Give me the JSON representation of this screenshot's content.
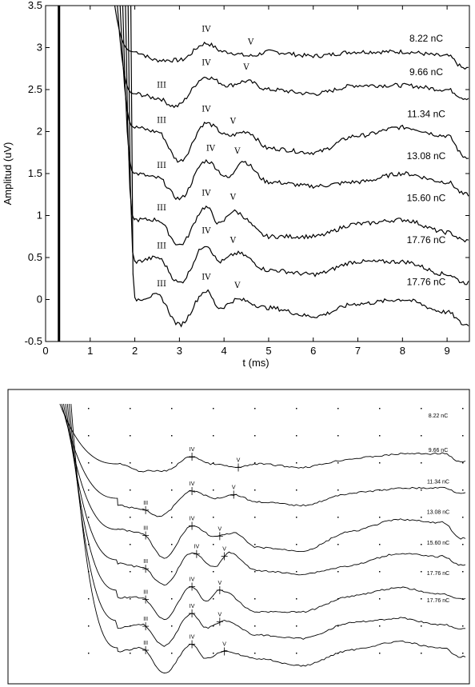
{
  "chart_data": [
    {
      "type": "line",
      "xlabel": "t  (ms)",
      "ylabel": "Amplitud (uV)",
      "xlim": [
        0,
        9.5
      ],
      "ylim": [
        -0.5,
        3.5
      ],
      "xticks": [
        "0",
        "1",
        "2",
        "3",
        "4",
        "5",
        "6",
        "7",
        "8",
        "9"
      ],
      "yticks": [
        "-0.5",
        "0",
        "0.5",
        "1",
        "1.5",
        "2",
        "2.5",
        "3",
        "3.5"
      ],
      "grid": false,
      "stimulus_marker_t": 0.3,
      "series": [
        {
          "name": "8.22 nC",
          "offset": 2.95,
          "has_III": false,
          "x": [
            2.0,
            2.5,
            3.0,
            3.6,
            4.0,
            4.6,
            5.0,
            6.0,
            7.0,
            8.0,
            9.0,
            9.4
          ],
          "y": [
            0.0,
            -0.1,
            -0.1,
            0.1,
            0.0,
            -0.05,
            0.0,
            -0.05,
            0.0,
            0.0,
            -0.05,
            -0.2
          ],
          "peaks": [
            {
              "label": "IV",
              "t": 3.6
            },
            {
              "label": "V",
              "t": 4.6
            }
          ]
        },
        {
          "name": "9.66 nC",
          "offset": 2.55,
          "has_III": true,
          "x": [
            2.0,
            2.5,
            2.9,
            3.6,
            4.1,
            4.5,
            5.0,
            6.0,
            7.0,
            8.0,
            9.0,
            9.4
          ],
          "y": [
            -0.1,
            -0.15,
            -0.25,
            0.1,
            0.0,
            0.05,
            -0.05,
            -0.1,
            0.0,
            0.0,
            -0.05,
            -0.15
          ],
          "peaks": [
            {
              "label": "III",
              "t": 2.6
            },
            {
              "label": "IV",
              "t": 3.6
            },
            {
              "label": "V",
              "t": 4.5
            }
          ]
        },
        {
          "name": "11.34 nC",
          "offset": 2.05,
          "has_III": true,
          "x": [
            2.0,
            2.5,
            3.0,
            3.6,
            4.1,
            4.5,
            5.0,
            6.0,
            7.0,
            8.0,
            9.0,
            9.4
          ],
          "y": [
            0.0,
            -0.05,
            -0.4,
            0.05,
            -0.1,
            -0.05,
            -0.25,
            -0.3,
            -0.1,
            0.0,
            -0.1,
            -0.35
          ],
          "peaks": [
            {
              "label": "III",
              "t": 2.6
            },
            {
              "label": "IV",
              "t": 3.6
            },
            {
              "label": "V",
              "t": 4.2
            }
          ]
        },
        {
          "name": "13.08 nC",
          "offset": 1.55,
          "has_III": true,
          "x": [
            2.0,
            2.5,
            3.0,
            3.6,
            4.1,
            4.4,
            5.0,
            6.0,
            7.0,
            8.0,
            9.0,
            9.4
          ],
          "y": [
            -0.05,
            -0.1,
            -0.35,
            0.1,
            -0.1,
            0.1,
            -0.15,
            -0.2,
            -0.15,
            -0.05,
            -0.15,
            -0.3
          ],
          "peaks": [
            {
              "label": "III",
              "t": 2.6
            },
            {
              "label": "IV",
              "t": 3.7
            },
            {
              "label": "V",
              "t": 4.3
            }
          ]
        },
        {
          "name": "15.60 nC",
          "offset": 1.05,
          "has_III": true,
          "x": [
            2.0,
            2.5,
            3.0,
            3.6,
            3.9,
            4.2,
            5.0,
            6.0,
            7.0,
            8.0,
            9.0,
            9.4
          ],
          "y": [
            -0.1,
            -0.1,
            -0.4,
            0.05,
            -0.15,
            0.0,
            -0.3,
            -0.3,
            -0.15,
            -0.1,
            -0.25,
            -0.35
          ],
          "peaks": [
            {
              "label": "III",
              "t": 2.6
            },
            {
              "label": "IV",
              "t": 3.6
            },
            {
              "label": "V",
              "t": 4.2
            }
          ]
        },
        {
          "name": "17.76 nC",
          "offset": 0.55,
          "has_III": true,
          "x": [
            2.0,
            2.5,
            3.0,
            3.6,
            3.9,
            4.3,
            5.0,
            6.0,
            7.0,
            8.0,
            9.0,
            9.4
          ],
          "y": [
            -0.1,
            -0.05,
            -0.35,
            0.1,
            -0.1,
            0.0,
            -0.2,
            -0.25,
            -0.1,
            -0.1,
            -0.25,
            -0.35
          ],
          "peaks": [
            {
              "label": "III",
              "t": 2.6
            },
            {
              "label": "IV",
              "t": 3.6
            },
            {
              "label": "V",
              "t": 4.2
            }
          ]
        },
        {
          "name": "17.76 nC",
          "offset": 0.05,
          "has_III": true,
          "x": [
            2.0,
            2.5,
            3.0,
            3.6,
            3.9,
            4.3,
            5.0,
            6.0,
            7.0,
            8.0,
            9.0,
            9.4
          ],
          "y": [
            -0.05,
            0.0,
            -0.35,
            0.05,
            -0.15,
            -0.05,
            -0.15,
            -0.25,
            -0.1,
            -0.05,
            -0.2,
            -0.35
          ],
          "peaks": [
            {
              "label": "III",
              "t": 2.6
            },
            {
              "label": "IV",
              "t": 3.6
            },
            {
              "label": "V",
              "t": 4.3
            }
          ]
        }
      ]
    },
    {
      "type": "line",
      "series_labels": [
        "8.22 nC",
        "9.66 nC",
        "11.34 nC",
        "13.08 nC",
        "15.60 nC",
        "17.76 nC",
        "17.76 nC"
      ],
      "peak_labels": [
        "III",
        "IV",
        "V"
      ]
    }
  ]
}
